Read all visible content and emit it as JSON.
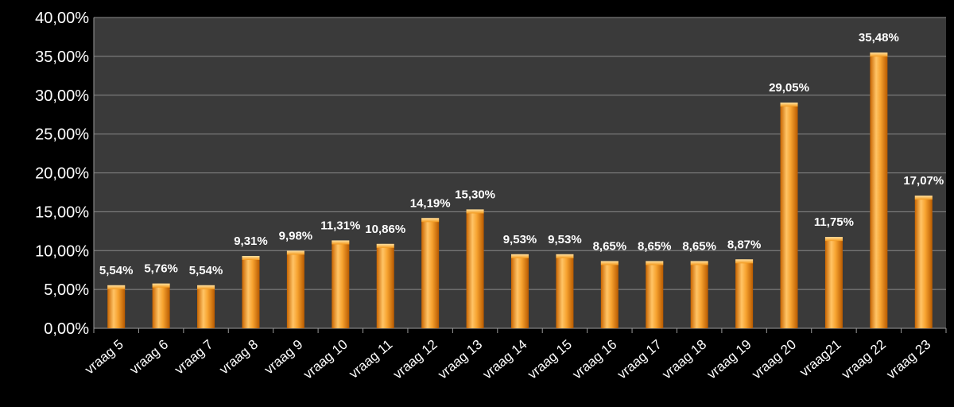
{
  "chart_data": {
    "type": "bar",
    "title": "",
    "xlabel": "",
    "ylabel": "",
    "ylim": [
      0,
      40
    ],
    "yticks": [
      "0,00%",
      "5,00%",
      "10,00%",
      "15,00%",
      "20,00%",
      "25,00%",
      "30,00%",
      "35,00%",
      "40,00%"
    ],
    "grid": "horizontal",
    "legend": "none",
    "categories": [
      "vraag 5",
      "vraag 6",
      "vraag 7",
      "vraag 8",
      "vraag 9",
      "vraag 10",
      "vraag 11",
      "vraag 12",
      "vraag 13",
      "vraag 14",
      "vraag 15",
      "vraag 16",
      "vraag 17",
      "vraag 18",
      "vraag 19",
      "vraag 20",
      "vraag21",
      "vraag 22",
      "vraag 23"
    ],
    "values": [
      5.54,
      5.76,
      5.54,
      9.31,
      9.98,
      11.31,
      10.86,
      14.19,
      15.3,
      9.53,
      9.53,
      8.65,
      8.65,
      8.65,
      8.87,
      29.05,
      11.75,
      35.48,
      17.07
    ],
    "labels": [
      "5,54%",
      "5,76%",
      "5,54%",
      "9,31%",
      "9,98%",
      "11,31%",
      "10,86%",
      "14,19%",
      "15,30%",
      "9,53%",
      "9,53%",
      "8,65%",
      "8,65%",
      "8,65%",
      "8,87%",
      "29,05%",
      "11,75%",
      "35,48%",
      "17,07%"
    ]
  },
  "colors": {
    "plot_background": "#3a3a3a",
    "page_background": "#000000",
    "bar_light": "#ffc466",
    "bar_mid": "#f39a1e",
    "bar_dark": "#b85a00",
    "grid": "#8a8a8a",
    "text": "#ffffff"
  }
}
